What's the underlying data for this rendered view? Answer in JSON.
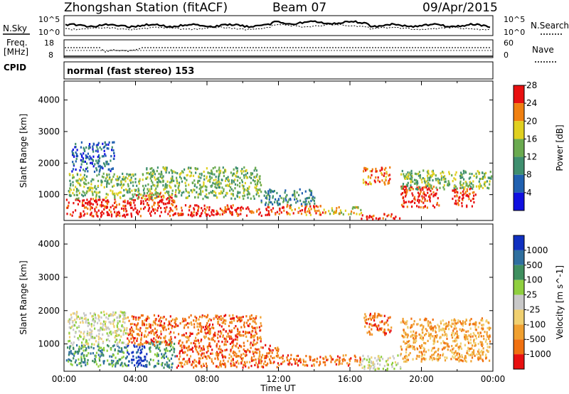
{
  "header": {
    "station": "Zhongshan Station (fitACF)",
    "beam": "Beam 07",
    "date": "09/Apr/2015",
    "mode": "normal (fast stereo) 153"
  },
  "strip_labels": {
    "nsky": "N.Sky",
    "nsearch": "N.Search",
    "freq_line1": "Freq.",
    "freq_line2": "[MHz]",
    "cpid": "CPID",
    "nave": "Nave",
    "sky_top": "10^5",
    "sky_bottom": "10^0",
    "search_top": "10^5",
    "search_bottom": "10^0",
    "freq_top": "18",
    "freq_bottom": "8",
    "nave_top": "60",
    "nave_bottom": "0"
  },
  "chart_data": [
    {
      "type": "heatmap",
      "panel": "power",
      "ylabel": "Slant Range [km]",
      "xlabel": "",
      "yticks": [
        "1000",
        "2000",
        "3000",
        "4000"
      ],
      "ylim": [
        180,
        4600
      ],
      "xlim": [
        0,
        24
      ],
      "colorbar": {
        "label": "Power [dB]",
        "ticks": [
          "4",
          "8",
          "12",
          "16",
          "20",
          "24",
          "28"
        ],
        "colors": [
          "#1010e0",
          "#2060b0",
          "#3f8f6f",
          "#6aaa50",
          "#e0d020",
          "#f08010",
          "#e81010"
        ]
      },
      "regions": [
        {
          "t0": 0.1,
          "t1": 4.0,
          "r0": 320,
          "r1": 900,
          "level": 6
        },
        {
          "t0": 4.0,
          "t1": 6.2,
          "r0": 350,
          "r1": 1100,
          "level": 6
        },
        {
          "t0": 6.2,
          "t1": 9.5,
          "r0": 330,
          "r1": 700,
          "level": 6
        },
        {
          "t0": 9.5,
          "t1": 12.3,
          "r0": 360,
          "r1": 650,
          "level": 6
        },
        {
          "t0": 12.3,
          "t1": 14.8,
          "r0": 380,
          "r1": 700,
          "level": 5
        },
        {
          "t0": 14.8,
          "t1": 16.6,
          "r0": 400,
          "r1": 650,
          "level": 4
        },
        {
          "t0": 16.6,
          "t1": 18.8,
          "r0": 250,
          "r1": 420,
          "level": 6
        },
        {
          "t0": 18.8,
          "t1": 21.0,
          "r0": 600,
          "r1": 1300,
          "level": 6
        },
        {
          "t0": 21.7,
          "t1": 23.0,
          "r0": 650,
          "r1": 1250,
          "level": 6
        },
        {
          "t0": 0.2,
          "t1": 4.5,
          "r0": 900,
          "r1": 1700,
          "level": 3
        },
        {
          "t0": 4.5,
          "t1": 11.0,
          "r0": 900,
          "r1": 1900,
          "level": 3
        },
        {
          "t0": 11.0,
          "t1": 14.0,
          "r0": 700,
          "r1": 1200,
          "level": 2
        },
        {
          "t0": 16.7,
          "t1": 18.2,
          "r0": 1350,
          "r1": 1900,
          "level": 5
        },
        {
          "t0": 18.8,
          "t1": 23.9,
          "r0": 1200,
          "r1": 1800,
          "level": 3
        },
        {
          "t0": 0.4,
          "t1": 2.8,
          "r0": 1750,
          "r1": 2700,
          "level": 1
        }
      ],
      "x_ticks": [
        "00:00",
        "04:00",
        "08:00",
        "12:00",
        "16:00",
        "20:00",
        "00:00"
      ]
    },
    {
      "type": "heatmap",
      "panel": "velocity",
      "ylabel": "Slant Range [km]",
      "xlabel": "Time UT",
      "yticks": [
        "1000",
        "2000",
        "3000",
        "4000"
      ],
      "ylim": [
        180,
        4600
      ],
      "xlim": [
        0,
        24
      ],
      "colorbar": {
        "label": "Velocity [m s^-1]",
        "ticks": [
          "1000",
          "500",
          "100",
          "25",
          "-25",
          "-100",
          "-500",
          "-1000"
        ],
        "colors": [
          "#1030c0",
          "#2f6f9f",
          "#3f8f5f",
          "#8fcf3f",
          "#c8c8c8",
          "#f0d070",
          "#f0a030",
          "#f07010",
          "#e81010"
        ]
      },
      "regions": [
        {
          "t0": 0.1,
          "t1": 3.5,
          "r0": 350,
          "r1": 1000,
          "level": 2
        },
        {
          "t0": 3.5,
          "t1": 4.6,
          "r0": 350,
          "r1": 1000,
          "level": 0
        },
        {
          "t0": 4.6,
          "t1": 6.2,
          "r0": 320,
          "r1": 1100,
          "level": 2
        },
        {
          "t0": 6.2,
          "t1": 12.0,
          "r0": 320,
          "r1": 1000,
          "level": 7
        },
        {
          "t0": 12.0,
          "t1": 16.6,
          "r0": 380,
          "r1": 700,
          "level": 7
        },
        {
          "t0": 16.6,
          "t1": 18.8,
          "r0": 250,
          "r1": 700,
          "level": 4
        },
        {
          "t0": 18.8,
          "t1": 23.8,
          "r0": 500,
          "r1": 1300,
          "level": 6
        },
        {
          "t0": 0.2,
          "t1": 3.5,
          "r0": 1000,
          "r1": 2000,
          "level": 4
        },
        {
          "t0": 3.5,
          "t1": 11.0,
          "r0": 1000,
          "r1": 1900,
          "level": 7
        },
        {
          "t0": 16.7,
          "t1": 18.3,
          "r0": 1300,
          "r1": 1950,
          "level": 7
        },
        {
          "t0": 18.8,
          "t1": 23.9,
          "r0": 1200,
          "r1": 1800,
          "level": 6
        }
      ],
      "x_ticks": [
        "00:00",
        "04:00",
        "08:00",
        "12:00",
        "16:00",
        "20:00",
        "00:00"
      ]
    }
  ]
}
